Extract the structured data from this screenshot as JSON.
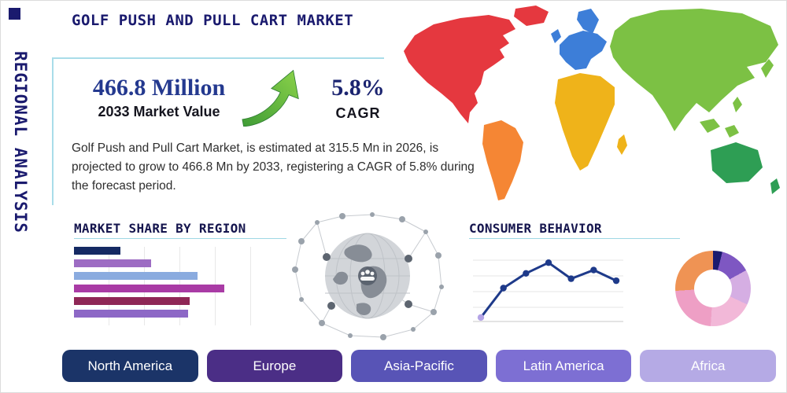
{
  "page": {
    "vertical_title": "REGIONAL ANALYSIS",
    "title": "GOLF PUSH AND PULL CART MARKET",
    "accent_color": "#9fd8e4",
    "navy": "#1a1a6e"
  },
  "highlight": {
    "market_value": "466.8 Million",
    "market_value_label": "2033 Market Value",
    "cagr_value": "5.8%",
    "cagr_label": "CAGR",
    "growth_arrow_icon": "up-right-green-arrow"
  },
  "description": "Golf Push and Pull Cart Market, is estimated at 315.5 Mn in 2026, is projected to grow to 466.8 Mn by 2033, registering a CAGR of 5.8% during the forecast period.",
  "sections": {
    "market_share_title": "MARKET SHARE BY REGION",
    "consumer_behavior_title": "CONSUMER BEHAVIOR"
  },
  "region_buttons": [
    {
      "label": "North America",
      "color": "#1b3468"
    },
    {
      "label": "Europe",
      "color": "#4b2e86"
    },
    {
      "label": "Asia-Pacific",
      "color": "#5854b6"
    },
    {
      "label": "Latin America",
      "color": "#7d6fd3"
    },
    {
      "label": "Africa",
      "color": "#b5aae5"
    }
  ],
  "map": {
    "colors": {
      "north_america": "#e5383f",
      "greenland": "#e5383f",
      "south_america": "#f58634",
      "europe": "#3d7ed8",
      "scandinavia": "#3d7ed8",
      "uk": "#3d7ed8",
      "africa": "#efb31a",
      "madagascar": "#efb31a",
      "asia": "#7cc144",
      "japan": "#7cc144",
      "southeast_asia_1": "#7cc144",
      "southeast_asia_2": "#7cc144",
      "philippines": "#7cc144",
      "australia": "#2e9e54",
      "new_zealand": "#2e9e54"
    }
  },
  "chart_data": [
    {
      "type": "bar",
      "title": "MARKET SHARE BY REGION",
      "orientation": "horizontal",
      "values": [
        24,
        40,
        64,
        78,
        60,
        59
      ],
      "colors": [
        "#152a63",
        "#9d6cc3",
        "#8aabdf",
        "#a93ba5",
        "#8f2756",
        "#8d68c6"
      ],
      "xlim": [
        0,
        100
      ],
      "axis_labels_visible": false,
      "grid": "vertical"
    },
    {
      "type": "line",
      "title": "CONSUMER BEHAVIOR",
      "x": [
        1,
        2,
        3,
        4,
        5,
        6,
        7
      ],
      "values": [
        6,
        50,
        72,
        88,
        64,
        77,
        61
      ],
      "color": "#1e3a8a",
      "first_point_color": "#b4a4e6",
      "grid": "horizontal",
      "axis_labels_visible": false
    },
    {
      "type": "pie",
      "donut": true,
      "labels_visible": false,
      "slices": [
        {
          "color": "#1b1b6f",
          "value": 4
        },
        {
          "color": "#7e57c2",
          "value": 13
        },
        {
          "color": "#d5aee3",
          "value": 15
        },
        {
          "color": "#f2b8d8",
          "value": 19
        },
        {
          "color": "#ee9fc5",
          "value": 23
        },
        {
          "color": "#ef9354",
          "value": 26
        }
      ]
    }
  ]
}
